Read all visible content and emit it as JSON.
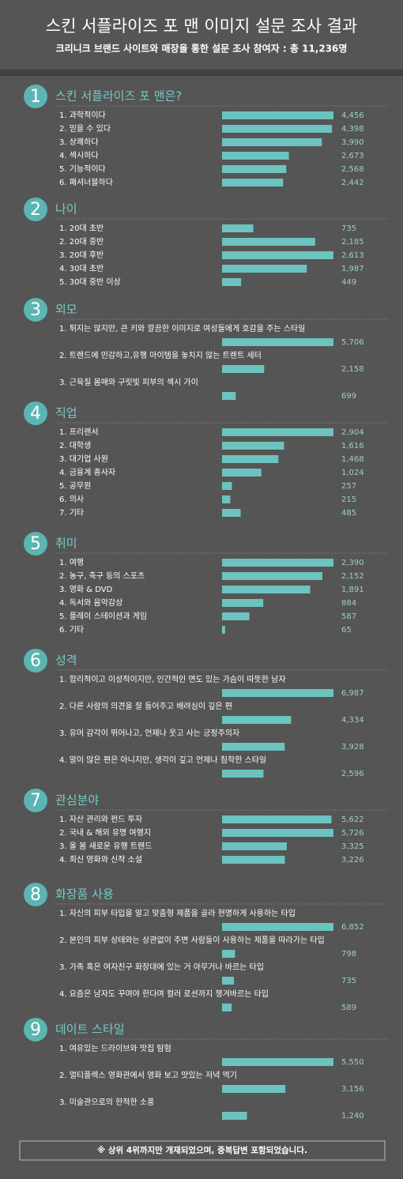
{
  "header": {
    "title": "스킨 서플라이즈 포 맨 이미지 설문 조사 결과",
    "subtitle": "크리니크 브랜드 사이트와 매장을 통한 설문 조사 참여자  : 총 11,236명"
  },
  "chart_data": [
    {
      "type": "bar",
      "number": 1,
      "title": "스킨 서플라이즈 포 맨은?",
      "color": "#6cc3bf",
      "categories": [
        "1. 과학적이다",
        "2. 믿을 수 있다",
        "3. 상쾌하다",
        "4. 섹시하다",
        "5. 기능적이다",
        "6. 패셔너블하다"
      ],
      "values": [
        4456,
        4398,
        3990,
        2673,
        2568,
        2442
      ],
      "value_labels": [
        "4,456",
        "4,398",
        "3,990",
        "2,673",
        "2,568",
        "2,442"
      ]
    },
    {
      "type": "bar",
      "number": 2,
      "title": "나이",
      "color": "#6cc3bf",
      "categories": [
        "1. 20대 초반",
        "2. 20대 중반",
        "3. 20대 후반",
        "4. 30대 초반",
        "5. 30대 중반 이상"
      ],
      "values": [
        735,
        2185,
        2613,
        1987,
        449
      ],
      "value_labels": [
        "735",
        "2,185",
        "2,613",
        "1,987",
        "449"
      ]
    },
    {
      "type": "bar",
      "number": 3,
      "title": "외모",
      "color": "#6cc3bf",
      "categories": [
        "1. 튀지는 않지만, 큰 키와 깔끔한 이미지로 여성들에게 호감을 주는 스타일",
        "2. 트렌드에 민감하고,유행 아이템을 놓치지 않는 트렌트 세터",
        "3. 근육질 몸매와 구릿빛 피부의 섹시 가이"
      ],
      "values": [
        5706,
        2158,
        699
      ],
      "value_labels": [
        "5,706",
        "2,158",
        "699"
      ]
    },
    {
      "type": "bar",
      "number": 4,
      "title": "직업",
      "color": "#6cc3bf",
      "categories": [
        "1. 프리랜서",
        "2. 대학생",
        "3. 대기업 사원",
        "4. 금융계 종사자",
        "5. 공무원",
        "6. 의사",
        "7. 기타"
      ],
      "values": [
        2904,
        1616,
        1468,
        1024,
        257,
        215,
        485
      ],
      "value_labels": [
        "2,904",
        "1,616",
        "1,468",
        "1,024",
        "257",
        "215",
        "485"
      ]
    },
    {
      "type": "bar",
      "number": 5,
      "title": "취미",
      "color": "#6cc3bf",
      "categories": [
        "1. 여행",
        "2. 농구, 축구 등의 스포츠",
        "3. 영화 & DVD",
        "4. 독서와 음악감상",
        "5. 플레이 스테이션과 게임",
        "6. 기타"
      ],
      "values": [
        2390,
        2152,
        1891,
        884,
        587,
        65
      ],
      "value_labels": [
        "2,390",
        "2,152",
        "1,891",
        "884",
        "587",
        "65"
      ]
    },
    {
      "type": "bar",
      "number": 6,
      "title": "성격",
      "color": "#6cc3bf",
      "categories": [
        "1. 합리적이고 이성적이지만, 인간적인 면도 있는 가슴이 따뜻한 남자",
        "2. 다른 사람의 의견을 잘 들어주고 배려심이 깊은 편",
        "3. 유머 감각이 뛰어나고, 언제나 웃고 사는 긍정주의자",
        "4. 말이 많은 편은 아니지만, 생각이 깊고 언제나 침착한 스타일"
      ],
      "values": [
        6987,
        4334,
        3928,
        2596
      ],
      "value_labels": [
        "6,987",
        "4,334",
        "3,928",
        "2,596"
      ]
    },
    {
      "type": "bar",
      "number": 7,
      "title": "관심분야",
      "color": "#6cc3bf",
      "categories": [
        "1. 자산 관리와 펀드 투자",
        "2. 국내 & 해외 유명 여행지",
        "3. 올 봄 새로운 유행 트렌드",
        "4. 최신 영화와 신작 소설"
      ],
      "values": [
        5622,
        5726,
        3325,
        3226
      ],
      "value_labels": [
        "5,622",
        "5,726",
        "3,325",
        "3,226"
      ]
    },
    {
      "type": "bar",
      "number": 8,
      "title": "화장품 사용",
      "color": "#6cc3bf",
      "categories": [
        "1. 자신의 피부 타입을 알고 맞춤형 제품을 골라 현명하게 사용하는 타입",
        "2. 본인의 피부 상태와는 상관없이 주변 사람들이 사용하는 제품을 따라가는  타입",
        "3. 가족 혹은 여자친구 화장대에 있는 거 아무거나 바르는 타입",
        "4. 요즘은 남자도 꾸며야 한다며 컬러 로션까지 챙겨바르는 타입"
      ],
      "values": [
        6852,
        798,
        735,
        589
      ],
      "value_labels": [
        "6,852",
        "798",
        "735",
        "589"
      ]
    },
    {
      "type": "bar",
      "number": 9,
      "title": "데이트 스타일",
      "color": "#6cc3bf",
      "categories": [
        "1. 여유있는 드라이브와 맛집 탐험",
        "2. 멀티플렉스 영화관에서 영화 보고 맛있는 저녁 먹기",
        "3. 미술관으로의 한적한 소풍"
      ],
      "values": [
        5550,
        3156,
        1240
      ],
      "value_labels": [
        "5,550",
        "3,156",
        "1,240"
      ]
    }
  ],
  "footnote": "※ 상위 4위까지만 개재되었으며, 중복답변 포함되었습니다."
}
